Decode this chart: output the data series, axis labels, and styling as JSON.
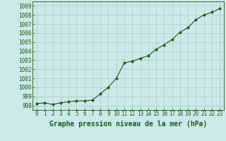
{
  "x": [
    0,
    1,
    2,
    3,
    4,
    5,
    6,
    7,
    8,
    9,
    10,
    11,
    12,
    13,
    14,
    15,
    16,
    17,
    18,
    19,
    20,
    21,
    22,
    23
  ],
  "y": [
    998.2,
    998.3,
    998.1,
    998.3,
    998.4,
    998.5,
    998.5,
    998.6,
    999.3,
    1000.0,
    1001.0,
    1002.7,
    1002.9,
    1003.2,
    1003.5,
    1004.2,
    1004.7,
    1005.3,
    1006.1,
    1006.6,
    1007.5,
    1008.0,
    1008.3,
    1008.7
  ],
  "ylim": [
    997.5,
    1009.5
  ],
  "yticks": [
    998,
    999,
    1000,
    1001,
    1002,
    1003,
    1004,
    1005,
    1006,
    1007,
    1008,
    1009
  ],
  "xticks": [
    0,
    1,
    2,
    3,
    4,
    5,
    6,
    7,
    8,
    9,
    10,
    11,
    12,
    13,
    14,
    15,
    16,
    17,
    18,
    19,
    20,
    21,
    22,
    23
  ],
  "xlabel": "Graphe pression niveau de la mer (hPa)",
  "line_color": "#1a5c1a",
  "marker": "D",
  "marker_size": 2.2,
  "bg_color": "#cce8e8",
  "grid_color": "#aacccc",
  "tick_label_color": "#1a5c1a",
  "xlabel_color": "#1a5c1a",
  "xlabel_fontsize": 7,
  "tick_fontsize": 5.5,
  "line_width": 0.8
}
